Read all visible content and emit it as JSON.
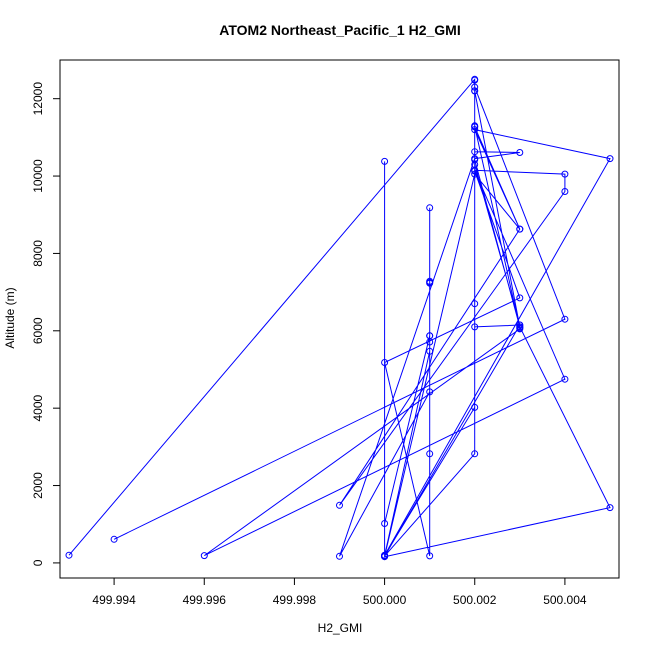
{
  "chart_data": {
    "type": "line",
    "title": "ATOM2 Northeast_Pacific_1 H2_GMI",
    "xlabel": "H2_GMI",
    "ylabel": "Altitude (m)",
    "xlim": [
      499.9928,
      500.0052
    ],
    "ylim": [
      -390,
      13000
    ],
    "x_ticks": [
      499.994,
      499.996,
      499.998,
      500.0,
      500.002,
      500.004
    ],
    "x_tick_labels": [
      "499.994",
      "499.996",
      "499.998",
      "500.000",
      "500.002",
      "500.004"
    ],
    "y_ticks": [
      0,
      2000,
      4000,
      6000,
      8000,
      10000,
      12000
    ],
    "y_tick_labels": [
      "0",
      "2000",
      "4000",
      "6000",
      "8000",
      "10000",
      "12000"
    ],
    "grid": false,
    "style": {
      "color": "#0000ff",
      "lines_and_points": true
    },
    "series": [
      {
        "x": [
          499.993,
          500.002,
          500.002,
          500.003,
          500.005,
          500.0,
          500.0,
          500.0,
          500.002,
          500.002,
          500.003,
          500.003,
          500.002,
          500.002,
          500.002,
          500.004,
          499.996,
          500.003,
          500.003,
          500.002,
          500.002,
          500.003,
          500.0,
          500.001,
          500.001,
          500.001,
          500.001,
          500.001,
          500.001,
          500.001,
          500.0,
          500.002,
          500.002,
          500.002,
          500.004,
          500.004,
          499.999,
          500.003,
          500.002,
          500.002,
          500.002,
          500.003,
          500.002,
          499.999,
          500.001,
          500.001,
          500.001,
          500.001,
          500.0,
          500.0,
          500.002,
          500.003,
          500.002,
          500.005,
          500.0,
          500.0,
          500.003,
          500.002,
          500.002,
          500.002,
          500.004,
          499.994
        ],
        "y": [
          200,
          12500,
          12200,
          6100,
          1430,
          160,
          10380,
          175,
          2820,
          10300,
          6150,
          6070,
          11280,
          11300,
          10150,
          4750,
          190,
          6050,
          6100,
          10420,
          10130,
          6850,
          5180,
          180,
          7280,
          7230,
          9180,
          5870,
          5710,
          5470,
          190,
          4020,
          6700,
          10150,
          10050,
          9600,
          1490,
          8630,
          11270,
          12200,
          10630,
          10610,
          10450,
          170,
          4420,
          2820,
          7250,
          5870,
          1020,
          170,
          10050,
          8630,
          11200,
          10450,
          200,
          170,
          6150,
          6100,
          12480,
          12300,
          6300,
          610
        ]
      }
    ]
  }
}
